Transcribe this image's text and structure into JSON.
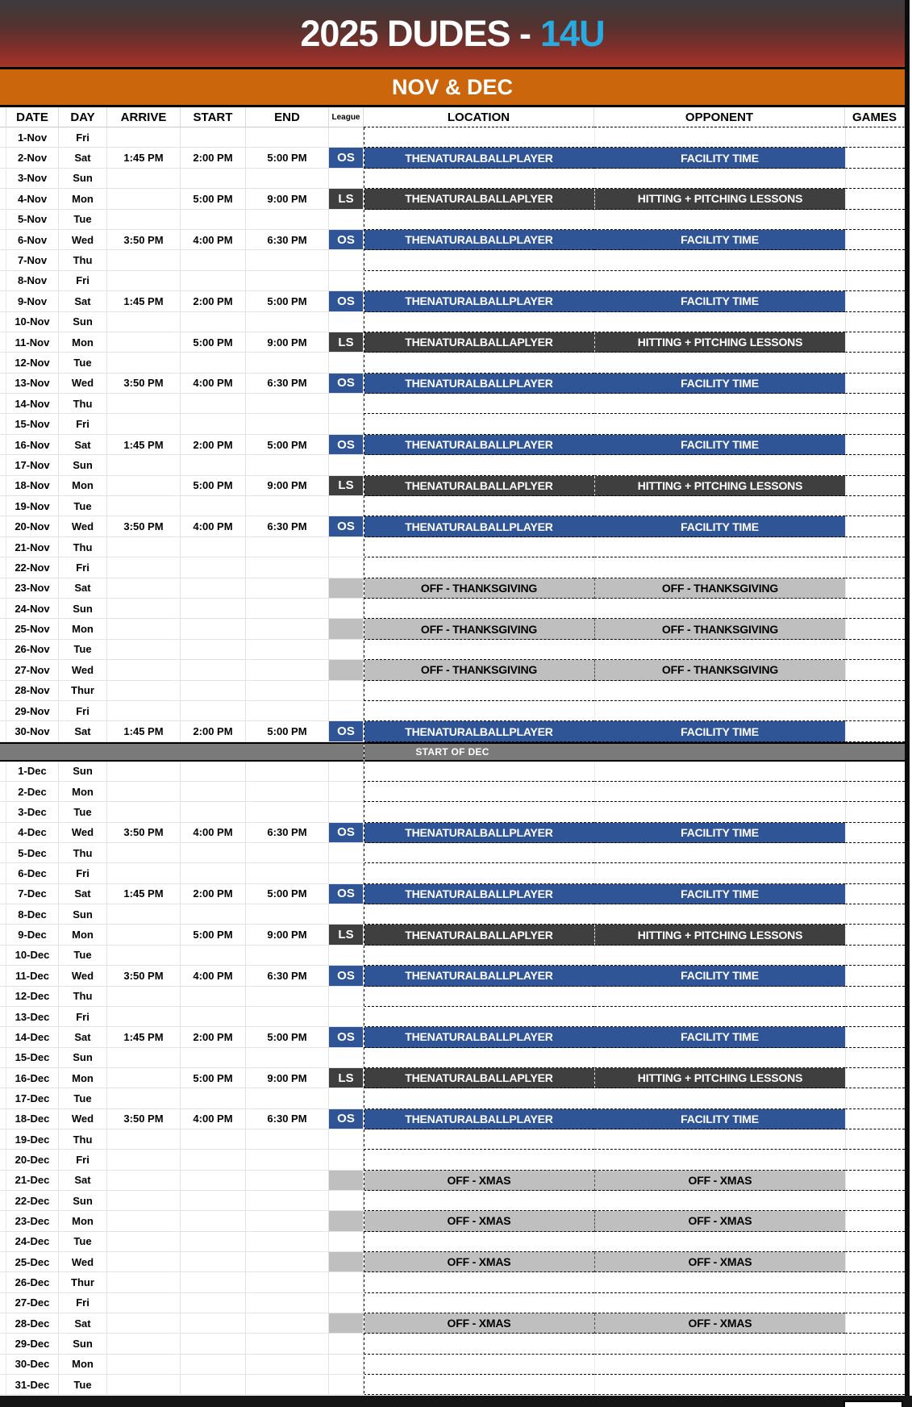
{
  "banner": {
    "title_main": "2025 DUDES -",
    "title_accent": "14U",
    "accent_color": "#29abe2"
  },
  "section": {
    "label": "NOV & DEC"
  },
  "columns": [
    "",
    "DATE",
    "DAY",
    "ARRIVE",
    "START",
    "END",
    "League",
    "LOCATION",
    "OPPONENT",
    "GAMES"
  ],
  "colors": {
    "os_blue": "#2f5597",
    "ls_dark": "#3f3f3f",
    "off_gray": "#bfbfbf",
    "divider_gray": "#7a7a7a",
    "band_orange": "#cc660d"
  },
  "legend": {
    "os_location": "THENATURALBALLPLAYER",
    "os_opponent": "FACILITY TIME",
    "ls_location": "THENATURALBALLAPLYER",
    "ls_opponent": "HITTING + PITCHING LESSONS"
  },
  "rows": [
    {
      "type": "none",
      "month": "nov",
      "date": "1-Nov",
      "day": "Fri",
      "arrive": "",
      "start": "",
      "end": "",
      "league": "",
      "location": "",
      "opponent": "",
      "games": ""
    },
    {
      "type": "os",
      "month": "nov",
      "date": "2-Nov",
      "day": "Sat",
      "arrive": "1:45 PM",
      "start": "2:00 PM",
      "end": "5:00 PM",
      "league": "OS",
      "location": "THENATURALBALLPLAYER",
      "opponent": "FACILITY TIME",
      "games": ""
    },
    {
      "type": "none",
      "month": "nov",
      "date": "3-Nov",
      "day": "Sun",
      "arrive": "",
      "start": "",
      "end": "",
      "league": "",
      "location": "",
      "opponent": "",
      "games": ""
    },
    {
      "type": "ls",
      "month": "nov",
      "date": "4-Nov",
      "day": "Mon",
      "arrive": "",
      "start": "5:00 PM",
      "end": "9:00 PM",
      "league": "LS",
      "location": "THENATURALBALLAPLYER",
      "opponent": "HITTING + PITCHING LESSONS",
      "games": ""
    },
    {
      "type": "none",
      "month": "nov",
      "date": "5-Nov",
      "day": "Tue",
      "arrive": "",
      "start": "",
      "end": "",
      "league": "",
      "location": "",
      "opponent": "",
      "games": ""
    },
    {
      "type": "os",
      "month": "nov",
      "date": "6-Nov",
      "day": "Wed",
      "arrive": "3:50 PM",
      "start": "4:00 PM",
      "end": "6:30 PM",
      "league": "OS",
      "location": "THENATURALBALLPLAYER",
      "opponent": "FACILITY TIME",
      "games": ""
    },
    {
      "type": "none",
      "month": "nov",
      "date": "7-Nov",
      "day": "Thu",
      "arrive": "",
      "start": "",
      "end": "",
      "league": "",
      "location": "",
      "opponent": "",
      "games": ""
    },
    {
      "type": "none",
      "month": "nov",
      "date": "8-Nov",
      "day": "Fri",
      "arrive": "",
      "start": "",
      "end": "",
      "league": "",
      "location": "",
      "opponent": "",
      "games": ""
    },
    {
      "type": "os",
      "month": "nov",
      "date": "9-Nov",
      "day": "Sat",
      "arrive": "1:45 PM",
      "start": "2:00 PM",
      "end": "5:00 PM",
      "league": "OS",
      "location": "THENATURALBALLPLAYER",
      "opponent": "FACILITY TIME",
      "games": ""
    },
    {
      "type": "none",
      "month": "nov",
      "date": "10-Nov",
      "day": "Sun",
      "arrive": "",
      "start": "",
      "end": "",
      "league": "",
      "location": "",
      "opponent": "",
      "games": ""
    },
    {
      "type": "ls",
      "month": "nov",
      "date": "11-Nov",
      "day": "Mon",
      "arrive": "",
      "start": "5:00 PM",
      "end": "9:00 PM",
      "league": "LS",
      "location": "THENATURALBALLAPLYER",
      "opponent": "HITTING + PITCHING LESSONS",
      "games": ""
    },
    {
      "type": "none",
      "month": "nov",
      "date": "12-Nov",
      "day": "Tue",
      "arrive": "",
      "start": "",
      "end": "",
      "league": "",
      "location": "",
      "opponent": "",
      "games": ""
    },
    {
      "type": "os",
      "month": "nov",
      "date": "13-Nov",
      "day": "Wed",
      "arrive": "3:50 PM",
      "start": "4:00 PM",
      "end": "6:30 PM",
      "league": "OS",
      "location": "THENATURALBALLPLAYER",
      "opponent": "FACILITY TIME",
      "games": ""
    },
    {
      "type": "none",
      "month": "nov",
      "date": "14-Nov",
      "day": "Thu",
      "arrive": "",
      "start": "",
      "end": "",
      "league": "",
      "location": "",
      "opponent": "",
      "games": ""
    },
    {
      "type": "none",
      "month": "nov",
      "date": "15-Nov",
      "day": "Fri",
      "arrive": "",
      "start": "",
      "end": "",
      "league": "",
      "location": "",
      "opponent": "",
      "games": ""
    },
    {
      "type": "os",
      "month": "nov",
      "date": "16-Nov",
      "day": "Sat",
      "arrive": "1:45 PM",
      "start": "2:00 PM",
      "end": "5:00 PM",
      "league": "OS",
      "location": "THENATURALBALLPLAYER",
      "opponent": "FACILITY TIME",
      "games": ""
    },
    {
      "type": "none",
      "month": "nov",
      "date": "17-Nov",
      "day": "Sun",
      "arrive": "",
      "start": "",
      "end": "",
      "league": "",
      "location": "",
      "opponent": "",
      "games": ""
    },
    {
      "type": "ls",
      "month": "nov",
      "date": "18-Nov",
      "day": "Mon",
      "arrive": "",
      "start": "5:00 PM",
      "end": "9:00 PM",
      "league": "LS",
      "location": "THENATURALBALLAPLYER",
      "opponent": "HITTING + PITCHING LESSONS",
      "games": ""
    },
    {
      "type": "none",
      "month": "nov",
      "date": "19-Nov",
      "day": "Tue",
      "arrive": "",
      "start": "",
      "end": "",
      "league": "",
      "location": "",
      "opponent": "",
      "games": ""
    },
    {
      "type": "os",
      "month": "nov",
      "date": "20-Nov",
      "day": "Wed",
      "arrive": "3:50 PM",
      "start": "4:00 PM",
      "end": "6:30 PM",
      "league": "OS",
      "location": "THENATURALBALLPLAYER",
      "opponent": "FACILITY TIME",
      "games": ""
    },
    {
      "type": "none",
      "month": "nov",
      "date": "21-Nov",
      "day": "Thu",
      "arrive": "",
      "start": "",
      "end": "",
      "league": "",
      "location": "",
      "opponent": "",
      "games": ""
    },
    {
      "type": "none",
      "month": "nov",
      "date": "22-Nov",
      "day": "Fri",
      "arrive": "",
      "start": "",
      "end": "",
      "league": "",
      "location": "",
      "opponent": "",
      "games": ""
    },
    {
      "type": "off",
      "month": "nov",
      "date": "23-Nov",
      "day": "Sat",
      "arrive": "",
      "start": "",
      "end": "",
      "league": "",
      "location": "OFF - THANKSGIVING",
      "opponent": "OFF - THANKSGIVING",
      "games": ""
    },
    {
      "type": "none",
      "month": "nov",
      "date": "24-Nov",
      "day": "Sun",
      "arrive": "",
      "start": "",
      "end": "",
      "league": "",
      "location": "",
      "opponent": "",
      "games": ""
    },
    {
      "type": "off",
      "month": "nov",
      "date": "25-Nov",
      "day": "Mon",
      "arrive": "",
      "start": "",
      "end": "",
      "league": "",
      "location": "OFF - THANKSGIVING",
      "opponent": "OFF - THANKSGIVING",
      "games": ""
    },
    {
      "type": "none",
      "month": "nov",
      "date": "26-Nov",
      "day": "Tue",
      "arrive": "",
      "start": "",
      "end": "",
      "league": "",
      "location": "",
      "opponent": "",
      "games": ""
    },
    {
      "type": "off",
      "month": "nov",
      "date": "27-Nov",
      "day": "Wed",
      "arrive": "",
      "start": "",
      "end": "",
      "league": "",
      "location": "OFF - THANKSGIVING",
      "opponent": "OFF - THANKSGIVING",
      "games": ""
    },
    {
      "type": "none",
      "month": "nov",
      "date": "28-Nov",
      "day": "Thur",
      "arrive": "",
      "start": "",
      "end": "",
      "league": "",
      "location": "",
      "opponent": "",
      "games": ""
    },
    {
      "type": "none",
      "month": "nov",
      "date": "29-Nov",
      "day": "Fri",
      "arrive": "",
      "start": "",
      "end": "",
      "league": "",
      "location": "",
      "opponent": "",
      "games": ""
    },
    {
      "type": "os",
      "month": "nov",
      "date": "30-Nov",
      "day": "Sat",
      "arrive": "1:45 PM",
      "start": "2:00 PM",
      "end": "5:00 PM",
      "league": "OS",
      "location": "THENATURALBALLPLAYER",
      "opponent": "FACILITY TIME",
      "games": ""
    },
    {
      "type": "divider",
      "label": "START OF DEC"
    },
    {
      "type": "none",
      "month": "dec",
      "date": "1-Dec",
      "day": "Sun",
      "arrive": "",
      "start": "",
      "end": "",
      "league": "",
      "location": "",
      "opponent": "",
      "games": ""
    },
    {
      "type": "none",
      "month": "dec",
      "date": "2-Dec",
      "day": "Mon",
      "arrive": "",
      "start": "",
      "end": "",
      "league": "",
      "location": "",
      "opponent": "",
      "games": ""
    },
    {
      "type": "none",
      "month": "dec",
      "date": "3-Dec",
      "day": "Tue",
      "arrive": "",
      "start": "",
      "end": "",
      "league": "",
      "location": "",
      "opponent": "",
      "games": ""
    },
    {
      "type": "os",
      "month": "dec",
      "date": "4-Dec",
      "day": "Wed",
      "arrive": "3:50 PM",
      "start": "4:00 PM",
      "end": "6:30 PM",
      "league": "OS",
      "location": "THENATURALBALLPLAYER",
      "opponent": "FACILITY TIME",
      "games": ""
    },
    {
      "type": "none",
      "month": "dec",
      "date": "5-Dec",
      "day": "Thu",
      "arrive": "",
      "start": "",
      "end": "",
      "league": "",
      "location": "",
      "opponent": "",
      "games": ""
    },
    {
      "type": "none",
      "month": "dec",
      "date": "6-Dec",
      "day": "Fri",
      "arrive": "",
      "start": "",
      "end": "",
      "league": "",
      "location": "",
      "opponent": "",
      "games": ""
    },
    {
      "type": "os",
      "month": "dec",
      "date": "7-Dec",
      "day": "Sat",
      "arrive": "1:45 PM",
      "start": "2:00 PM",
      "end": "5:00 PM",
      "league": "OS",
      "location": "THENATURALBALLPLAYER",
      "opponent": "FACILITY TIME",
      "games": ""
    },
    {
      "type": "none",
      "month": "dec",
      "date": "8-Dec",
      "day": "Sun",
      "arrive": "",
      "start": "",
      "end": "",
      "league": "",
      "location": "",
      "opponent": "",
      "games": ""
    },
    {
      "type": "ls",
      "month": "dec",
      "date": "9-Dec",
      "day": "Mon",
      "arrive": "",
      "start": "5:00 PM",
      "end": "9:00 PM",
      "league": "LS",
      "location": "THENATURALBALLAPLYER",
      "opponent": "HITTING + PITCHING LESSONS",
      "games": ""
    },
    {
      "type": "none",
      "month": "dec",
      "date": "10-Dec",
      "day": "Tue",
      "arrive": "",
      "start": "",
      "end": "",
      "league": "",
      "location": "",
      "opponent": "",
      "games": ""
    },
    {
      "type": "os",
      "month": "dec",
      "date": "11-Dec",
      "day": "Wed",
      "arrive": "3:50 PM",
      "start": "4:00 PM",
      "end": "6:30 PM",
      "league": "OS",
      "location": "THENATURALBALLPLAYER",
      "opponent": "FACILITY TIME",
      "games": ""
    },
    {
      "type": "none",
      "month": "dec",
      "date": "12-Dec",
      "day": "Thu",
      "arrive": "",
      "start": "",
      "end": "",
      "league": "",
      "location": "",
      "opponent": "",
      "games": ""
    },
    {
      "type": "none",
      "month": "dec",
      "date": "13-Dec",
      "day": "Fri",
      "arrive": "",
      "start": "",
      "end": "",
      "league": "",
      "location": "",
      "opponent": "",
      "games": ""
    },
    {
      "type": "os",
      "month": "dec",
      "date": "14-Dec",
      "day": "Sat",
      "arrive": "1:45 PM",
      "start": "2:00 PM",
      "end": "5:00 PM",
      "league": "OS",
      "location": "THENATURALBALLPLAYER",
      "opponent": "FACILITY TIME",
      "games": ""
    },
    {
      "type": "none",
      "month": "dec",
      "date": "15-Dec",
      "day": "Sun",
      "arrive": "",
      "start": "",
      "end": "",
      "league": "",
      "location": "",
      "opponent": "",
      "games": ""
    },
    {
      "type": "ls",
      "month": "dec",
      "date": "16-Dec",
      "day": "Mon",
      "arrive": "",
      "start": "5:00 PM",
      "end": "9:00 PM",
      "league": "LS",
      "location": "THENATURALBALLAPLYER",
      "opponent": "HITTING + PITCHING LESSONS",
      "games": ""
    },
    {
      "type": "none",
      "month": "dec",
      "date": "17-Dec",
      "day": "Tue",
      "arrive": "",
      "start": "",
      "end": "",
      "league": "",
      "location": "",
      "opponent": "",
      "games": ""
    },
    {
      "type": "os",
      "month": "dec",
      "date": "18-Dec",
      "day": "Wed",
      "arrive": "3:50 PM",
      "start": "4:00 PM",
      "end": "6:30 PM",
      "league": "OS",
      "location": "THENATURALBALLPLAYER",
      "opponent": "FACILITY TIME",
      "games": ""
    },
    {
      "type": "none",
      "month": "dec",
      "date": "19-Dec",
      "day": "Thu",
      "arrive": "",
      "start": "",
      "end": "",
      "league": "",
      "location": "",
      "opponent": "",
      "games": ""
    },
    {
      "type": "none",
      "month": "dec",
      "date": "20-Dec",
      "day": "Fri",
      "arrive": "",
      "start": "",
      "end": "",
      "league": "",
      "location": "",
      "opponent": "",
      "games": ""
    },
    {
      "type": "off",
      "month": "dec",
      "date": "21-Dec",
      "day": "Sat",
      "arrive": "",
      "start": "",
      "end": "",
      "league": "",
      "location": "OFF - XMAS",
      "opponent": "OFF - XMAS",
      "games": ""
    },
    {
      "type": "none",
      "month": "dec",
      "date": "22-Dec",
      "day": "Sun",
      "arrive": "",
      "start": "",
      "end": "",
      "league": "",
      "location": "",
      "opponent": "",
      "games": ""
    },
    {
      "type": "off",
      "month": "dec",
      "date": "23-Dec",
      "day": "Mon",
      "arrive": "",
      "start": "",
      "end": "",
      "league": "",
      "location": "OFF - XMAS",
      "opponent": "OFF - XMAS",
      "games": ""
    },
    {
      "type": "none",
      "month": "dec",
      "date": "24-Dec",
      "day": "Tue",
      "arrive": "",
      "start": "",
      "end": "",
      "league": "",
      "location": "",
      "opponent": "",
      "games": ""
    },
    {
      "type": "off",
      "month": "dec",
      "date": "25-Dec",
      "day": "Wed",
      "arrive": "",
      "start": "",
      "end": "",
      "league": "",
      "location": "OFF - XMAS",
      "opponent": "OFF - XMAS",
      "games": ""
    },
    {
      "type": "none",
      "month": "dec",
      "date": "26-Dec",
      "day": "Thur",
      "arrive": "",
      "start": "",
      "end": "",
      "league": "",
      "location": "",
      "opponent": "",
      "games": ""
    },
    {
      "type": "none",
      "month": "dec",
      "date": "27-Dec",
      "day": "Fri",
      "arrive": "",
      "start": "",
      "end": "",
      "league": "",
      "location": "",
      "opponent": "",
      "games": ""
    },
    {
      "type": "off",
      "month": "dec",
      "date": "28-Dec",
      "day": "Sat",
      "arrive": "",
      "start": "",
      "end": "",
      "league": "",
      "location": "OFF - XMAS",
      "opponent": "OFF - XMAS",
      "games": ""
    },
    {
      "type": "none",
      "month": "dec",
      "date": "29-Dec",
      "day": "Sun",
      "arrive": "",
      "start": "",
      "end": "",
      "league": "",
      "location": "",
      "opponent": "",
      "games": ""
    },
    {
      "type": "none",
      "month": "dec",
      "date": "30-Dec",
      "day": "Mon",
      "arrive": "",
      "start": "",
      "end": "",
      "league": "",
      "location": "",
      "opponent": "",
      "games": ""
    },
    {
      "type": "none",
      "month": "dec",
      "date": "31-Dec",
      "day": "Tue",
      "arrive": "",
      "start": "",
      "end": "",
      "league": "",
      "location": "",
      "opponent": "",
      "games": ""
    }
  ]
}
